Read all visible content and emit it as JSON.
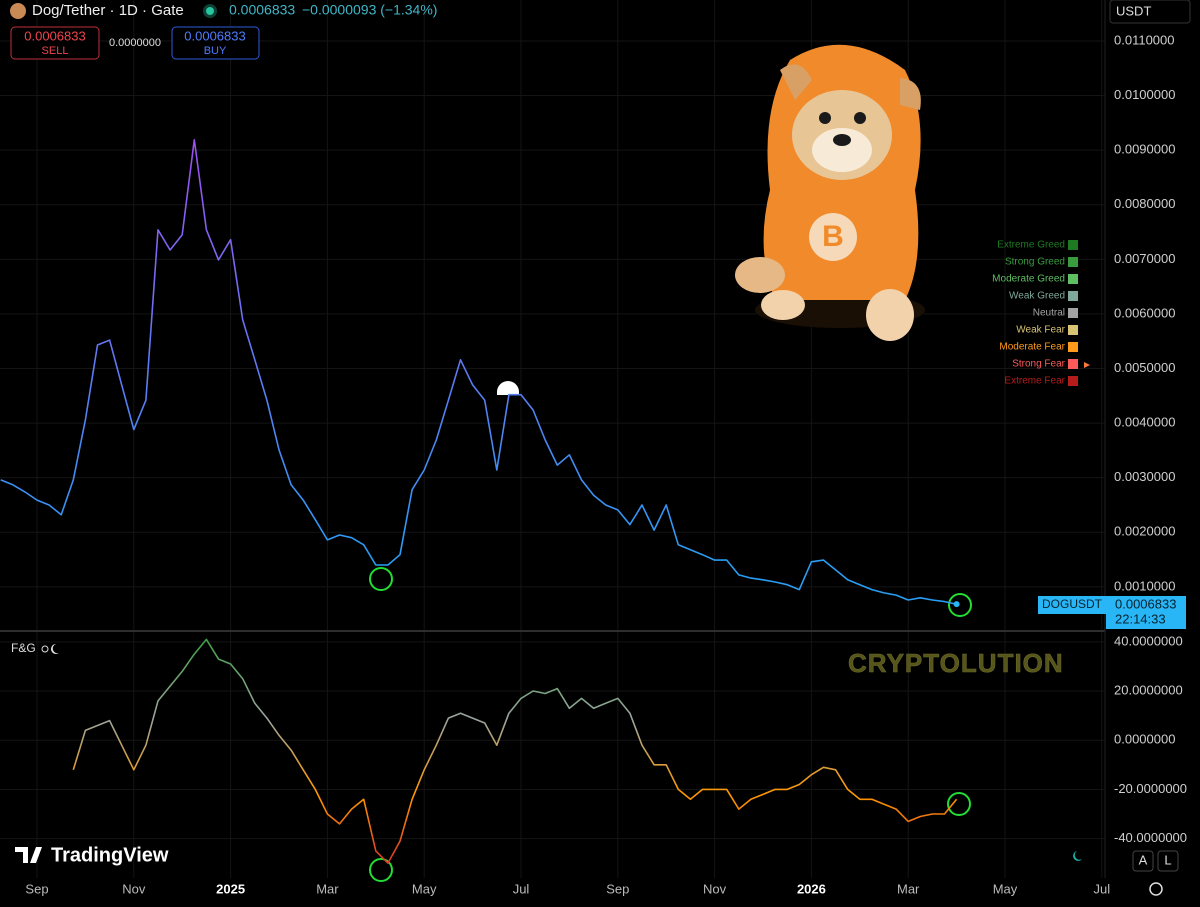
{
  "header": {
    "symbol": "Dog/Tether · 1D · Gate",
    "price": "0.0006833",
    "change": "−0.0000093 (−1.34%)"
  },
  "trade": {
    "sell_price": "0.0006833",
    "sell": "SELL",
    "spread": "0.0000000",
    "buy_price": "0.0006833",
    "buy": "BUY"
  },
  "currency": "USDT",
  "price_tag": {
    "symbol": "DOGUSDT",
    "price": "0.0006833",
    "countdown": "22:14:33"
  },
  "indicator_label": "F&G",
  "watermark": "CRYPTOLUTION",
  "brand": "TradingView",
  "buttons": [
    "A",
    "L"
  ],
  "chart_data": [
    {
      "type": "line",
      "categories": [
        null,
        null,
        null,
        "Sep",
        null,
        null,
        null,
        null,
        null,
        null,
        null,
        "Nov",
        null,
        null,
        null,
        null,
        null,
        null,
        null,
        "2025",
        null,
        null,
        null,
        null,
        null,
        null,
        null,
        "Mar",
        null,
        null,
        null,
        null,
        null,
        null,
        null,
        "May",
        null,
        null,
        null,
        null,
        null,
        null,
        null,
        "Jul",
        null,
        null,
        null,
        null,
        null,
        null,
        null,
        "Sep",
        null,
        null,
        null,
        null,
        null,
        null,
        null,
        "Nov",
        null,
        null,
        null,
        null,
        null,
        null,
        null,
        "2026",
        null,
        null,
        null,
        null,
        null,
        null,
        null,
        "Mar",
        null,
        null,
        null,
        null,
        null,
        null,
        null,
        "May",
        null,
        null,
        null,
        null,
        null,
        null,
        null,
        "Jul"
      ],
      "series": [
        {
          "name": "DOGUSDT",
          "colors": [
            "#a24cf0",
            "#2a9df4"
          ],
          "values": [
            0.00296,
            0.00287,
            0.00274,
            0.00259,
            0.0025,
            0.00232,
            0.00296,
            0.00406,
            0.00543,
            0.00552,
            0.0047,
            0.00388,
            0.00442,
            0.00754,
            0.00717,
            0.00745,
            0.00919,
            0.00754,
            0.00699,
            0.00736,
            0.00589,
            0.00516,
            0.00442,
            0.00351,
            0.00287,
            0.00259,
            0.00223,
            0.00186,
            0.00195,
            0.0019,
            0.00177,
            0.0014,
            0.0014,
            0.00159,
            0.00278,
            0.00314,
            0.00369,
            0.00442,
            0.00516,
            0.0047,
            0.00442,
            0.00314,
            0.00452,
            0.00452,
            0.00424,
            0.00369,
            0.00323,
            0.00342,
            0.00296,
            0.00268,
            0.0025,
            0.00241,
            0.00214,
            0.0025,
            0.00204,
            0.0025,
            0.00177,
            0.00168,
            0.00159,
            0.00149,
            0.00149,
            0.00122,
            0.00116,
            0.00113,
            0.00109,
            0.00104,
            0.00095,
            0.00146,
            0.00149,
            0.00131,
            0.00113,
            0.00104,
            0.00095,
            0.00089,
            0.00085,
            0.00076,
            0.0008,
            0.00076,
            0.00073,
            0.0006833,
            null,
            null,
            null,
            null,
            null,
            null,
            null,
            null,
            null,
            null,
            null,
            null
          ]
        }
      ],
      "ylim": [
        0.00021,
        0.01175
      ],
      "yticks": [
        {
          "value": 0.001,
          "label": "0.0010000"
        },
        {
          "value": 0.002,
          "label": "0.0020000"
        },
        {
          "value": 0.003,
          "label": "0.0030000"
        },
        {
          "value": 0.004,
          "label": "0.0040000"
        },
        {
          "value": 0.005,
          "label": "0.0050000"
        },
        {
          "value": 0.006,
          "label": "0.0060000"
        },
        {
          "value": 0.007,
          "label": "0.0070000"
        },
        {
          "value": 0.008,
          "label": "0.0080000"
        },
        {
          "value": 0.009,
          "label": "0.0090000"
        },
        {
          "value": 0.01,
          "label": "0.0100000"
        },
        {
          "value": 0.011,
          "label": "0.0110000"
        }
      ],
      "grid": true
    },
    {
      "type": "line",
      "series": [
        {
          "name": "F&G",
          "colors": [
            "#43a047",
            "#9aa5a0",
            "#ff9800",
            "#d32f2f"
          ],
          "values": [
            null,
            null,
            null,
            null,
            null,
            null,
            -12,
            4,
            6,
            8,
            -2,
            -12,
            -2,
            16,
            22,
            28,
            35,
            41,
            33,
            31,
            25,
            15,
            9,
            2,
            -4,
            -12,
            -20,
            -30,
            -34,
            -28,
            -24,
            -45,
            -50,
            -41,
            -24,
            -12,
            -2,
            9,
            11,
            9,
            7,
            -2,
            11,
            17,
            20,
            19,
            21,
            13,
            17,
            13,
            15,
            17,
            11,
            -2,
            -10,
            -10,
            -20,
            -24,
            -20,
            -20,
            -20,
            -28,
            -24,
            -22,
            -20,
            -20,
            -18,
            -14,
            -11,
            -12,
            -20,
            -24,
            -24,
            -26,
            -28,
            -33,
            -31,
            -30,
            -30,
            -24,
            null,
            null,
            null,
            null,
            null,
            null,
            null,
            null,
            null,
            null,
            null,
            null
          ]
        }
      ],
      "ylim": [
        -56,
        44
      ],
      "yticks": [
        {
          "value": -40,
          "label": "-40.0000000"
        },
        {
          "value": -20,
          "label": "-20.0000000"
        },
        {
          "value": 0,
          "label": "0.0000000"
        },
        {
          "value": 20,
          "label": "20.0000000"
        },
        {
          "value": 40,
          "label": "40.0000000"
        }
      ],
      "grid": true,
      "zones": [
        {
          "label": "Extreme Greed",
          "color": "#1e7a22"
        },
        {
          "label": "Strong Greed",
          "color": "#3a9a3e"
        },
        {
          "label": "Moderate Greed",
          "color": "#5fbf63"
        },
        {
          "label": "Weak Greed",
          "color": "#7fa89c"
        },
        {
          "label": "Neutral",
          "color": "#a3a3a3"
        },
        {
          "label": "Weak Fear",
          "color": "#d9c374"
        },
        {
          "label": "Moderate Fear",
          "color": "#ff9a1a"
        },
        {
          "label": "Strong Fear",
          "color": "#ff5a5a"
        },
        {
          "label": "Extreme Fear",
          "color": "#b71c1c"
        }
      ]
    }
  ]
}
